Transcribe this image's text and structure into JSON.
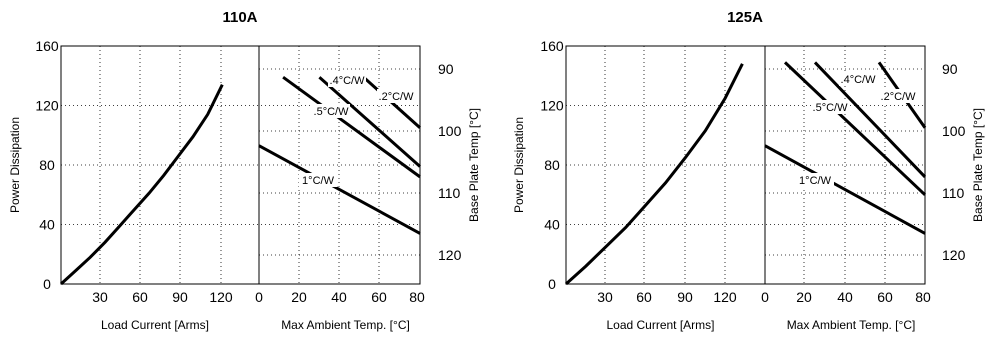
{
  "chart_data": [
    {
      "type": "line",
      "title": "110A",
      "left_panel": {
        "xlabel": "Load Current  [Arms]",
        "ylabel": "Power Dissipation",
        "xlim": [
          0,
          135
        ],
        "ylim": [
          0,
          160
        ],
        "xticks": [
          "30",
          "60",
          "90",
          "120"
        ],
        "yticks": [
          "0",
          "40",
          "80",
          "120",
          "160"
        ],
        "grid": true,
        "series": [
          {
            "x": [
              0,
              10,
              20,
              30,
              40,
              50,
              60,
              70,
              80,
              90,
              100,
              110
            ],
            "y": [
              0,
              9,
              18,
              28,
              39,
              50,
              61,
              73,
              86,
              99,
              114,
              134
            ]
          }
        ]
      },
      "right_panel": {
        "xlabel": "Max Ambient Temp. [°C]",
        "ylabel_right": "Base Plate Temp [°C]",
        "xlim": [
          0,
          80
        ],
        "xticks": [
          "0",
          "20",
          "40",
          "60",
          "80"
        ],
        "yticks_right": [
          "90",
          "100",
          "110",
          "120"
        ],
        "grid": true,
        "series": [
          {
            "name": "1°C/W",
            "x": [
              0,
              80
            ],
            "y": [
              93,
              34
            ]
          },
          {
            "name": ".5°C/W",
            "x": [
              12,
              80
            ],
            "y": [
              139,
              72
            ]
          },
          {
            "name": ".4°C/W",
            "x": [
              30,
              80
            ],
            "y": [
              139,
              79
            ]
          },
          {
            "name": ".2°C/W",
            "x": [
              52,
              80
            ],
            "y": [
              139,
              105
            ]
          }
        ]
      }
    },
    {
      "type": "line",
      "title": "125A",
      "left_panel": {
        "xlabel": "Load Current  [Arms]",
        "ylabel": "Power Dissipation",
        "xlim": [
          0,
          150
        ],
        "ylim": [
          0,
          160
        ],
        "xticks": [
          "30",
          "60",
          "90",
          "120"
        ],
        "yticks": [
          "0",
          "40",
          "80",
          "120",
          "160"
        ],
        "grid": true,
        "series": [
          {
            "x": [
              0,
              15,
              30,
              45,
              60,
              75,
              90,
              105,
              120,
              133
            ],
            "y": [
              0,
              12,
              25,
              38,
              53,
              68,
              85,
              103,
              125,
              148
            ]
          }
        ]
      },
      "right_panel": {
        "xlabel": "Max Ambient Temp. [°C]",
        "ylabel_right": "Base Plate Temp [°C]",
        "xlim": [
          0,
          80
        ],
        "xticks": [
          "0",
          "20",
          "40",
          "60",
          "80"
        ],
        "yticks_right": [
          "90",
          "100",
          "110",
          "120"
        ],
        "grid": true,
        "series": [
          {
            "name": "1°C/W",
            "x": [
              0,
              80
            ],
            "y": [
              93,
              34
            ]
          },
          {
            "name": ".5°C/W",
            "x": [
              10,
              80
            ],
            "y": [
              149,
              60
            ]
          },
          {
            "name": ".4°C/W",
            "x": [
              25,
              80
            ],
            "y": [
              149,
              72
            ]
          },
          {
            "name": ".2°C/W",
            "x": [
              57,
              80
            ],
            "y": [
              149,
              105
            ]
          }
        ]
      }
    }
  ]
}
